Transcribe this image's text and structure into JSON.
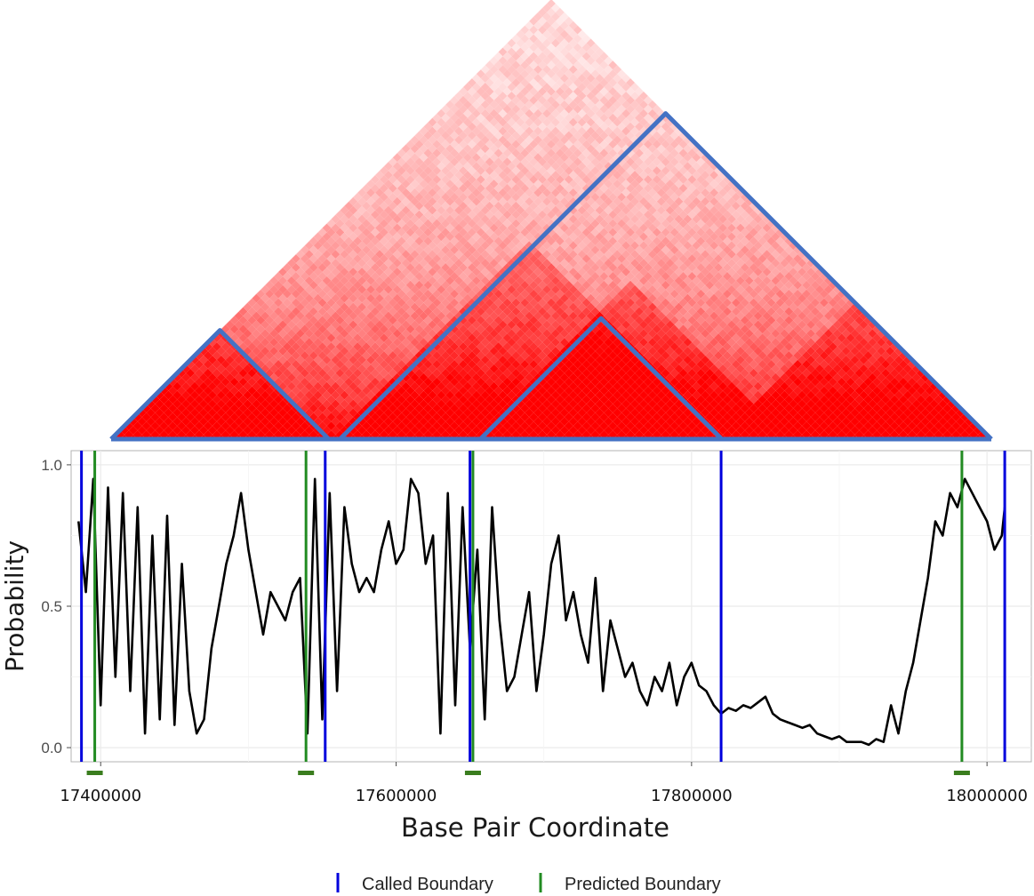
{
  "chart_data": [
    {
      "type": "heatmap",
      "description_shape": "triangular contact map",
      "colors": {
        "low": "#ffffff",
        "high": "#ff0000",
        "outline": "#4472c4"
      },
      "x_range": [
        17385000,
        18012000
      ],
      "bins": 100,
      "domains": [
        {
          "start": 17385000,
          "end": 17540000
        },
        {
          "start": 17548000,
          "end": 17820000
        },
        {
          "start": 17648000,
          "end": 17862000
        },
        {
          "start": 17820000,
          "end": 18012000
        }
      ],
      "outlined_domains": [
        {
          "start": 17385000,
          "end": 17540000
        },
        {
          "start": 17548000,
          "end": 18012000
        },
        {
          "start": 17648000,
          "end": 17820000
        }
      ]
    },
    {
      "type": "line",
      "ylabel": "Probability",
      "xlabel": "Base Pair Coordinate",
      "xlim": [
        17380000,
        18030000
      ],
      "ylim": [
        -0.05,
        1.05
      ],
      "y_ticks": [
        0.0,
        0.5,
        1.0
      ],
      "y_tick_labels": [
        "0.0",
        "0.5",
        "1.0"
      ],
      "x_ticks": [
        17400000,
        17600000,
        17800000,
        18000000
      ],
      "x_tick_labels": [
        "17400000",
        "17600000",
        "17800000",
        "18000000"
      ],
      "grid": true,
      "series": [
        {
          "color": "#000000",
          "x": [
            17385000,
            17390000,
            17395000,
            17400000,
            17405000,
            17410000,
            17415000,
            17420000,
            17425000,
            17430000,
            17435000,
            17440000,
            17445000,
            17450000,
            17455000,
            17460000,
            17465000,
            17470000,
            17475000,
            17480000,
            17485000,
            17490000,
            17495000,
            17500000,
            17505000,
            17510000,
            17515000,
            17520000,
            17525000,
            17530000,
            17535000,
            17540000,
            17545000,
            17550000,
            17555000,
            17560000,
            17565000,
            17570000,
            17575000,
            17580000,
            17585000,
            17590000,
            17595000,
            17600000,
            17605000,
            17610000,
            17615000,
            17620000,
            17625000,
            17630000,
            17635000,
            17640000,
            17645000,
            17650000,
            17655000,
            17660000,
            17665000,
            17670000,
            17675000,
            17680000,
            17685000,
            17690000,
            17695000,
            17700000,
            17705000,
            17710000,
            17715000,
            17720000,
            17725000,
            17730000,
            17735000,
            17740000,
            17745000,
            17750000,
            17755000,
            17760000,
            17765000,
            17770000,
            17775000,
            17780000,
            17785000,
            17790000,
            17795000,
            17800000,
            17805000,
            17810000,
            17815000,
            17820000,
            17825000,
            17830000,
            17835000,
            17840000,
            17845000,
            17850000,
            17855000,
            17860000,
            17865000,
            17870000,
            17875000,
            17880000,
            17885000,
            17890000,
            17895000,
            17900000,
            17905000,
            17910000,
            17915000,
            17920000,
            17925000,
            17930000,
            17935000,
            17940000,
            17945000,
            17950000,
            17955000,
            17960000,
            17965000,
            17970000,
            17975000,
            17980000,
            17985000,
            17990000,
            17995000,
            18000000,
            18005000,
            18010000,
            18012000
          ],
          "y": [
            0.8,
            0.55,
            0.95,
            0.15,
            0.92,
            0.25,
            0.9,
            0.2,
            0.85,
            0.05,
            0.75,
            0.1,
            0.82,
            0.08,
            0.65,
            0.2,
            0.05,
            0.1,
            0.35,
            0.5,
            0.65,
            0.75,
            0.9,
            0.7,
            0.55,
            0.4,
            0.55,
            0.5,
            0.45,
            0.55,
            0.6,
            0.05,
            0.95,
            0.1,
            0.9,
            0.2,
            0.85,
            0.65,
            0.55,
            0.6,
            0.55,
            0.7,
            0.8,
            0.65,
            0.7,
            0.95,
            0.9,
            0.65,
            0.75,
            0.05,
            0.9,
            0.15,
            0.85,
            0.35,
            0.7,
            0.1,
            0.85,
            0.45,
            0.2,
            0.25,
            0.4,
            0.55,
            0.2,
            0.4,
            0.65,
            0.75,
            0.45,
            0.55,
            0.4,
            0.3,
            0.6,
            0.2,
            0.45,
            0.35,
            0.25,
            0.3,
            0.2,
            0.15,
            0.25,
            0.2,
            0.3,
            0.15,
            0.25,
            0.3,
            0.22,
            0.2,
            0.15,
            0.12,
            0.14,
            0.13,
            0.15,
            0.14,
            0.16,
            0.18,
            0.12,
            0.1,
            0.09,
            0.08,
            0.07,
            0.08,
            0.05,
            0.04,
            0.03,
            0.04,
            0.02,
            0.02,
            0.02,
            0.01,
            0.03,
            0.02,
            0.15,
            0.05,
            0.2,
            0.3,
            0.45,
            0.6,
            0.8,
            0.75,
            0.9,
            0.85,
            0.95,
            0.9,
            0.85,
            0.8,
            0.7,
            0.75,
            0.85
          ]
        }
      ],
      "called_boundaries": [
        17387000,
        17552000,
        17650000,
        17820000,
        18012000
      ],
      "predicted_boundaries": [
        17396000,
        17539000,
        17652000,
        17983000
      ],
      "predicted_boundary_markers": [
        17396000,
        17539000,
        17652000,
        17983000
      ],
      "legend": {
        "placement": "bottom",
        "items": [
          {
            "label": "Called Boundary",
            "color": "#0000dd"
          },
          {
            "label": "Predicted Boundary",
            "color": "#228b22"
          }
        ]
      }
    }
  ]
}
